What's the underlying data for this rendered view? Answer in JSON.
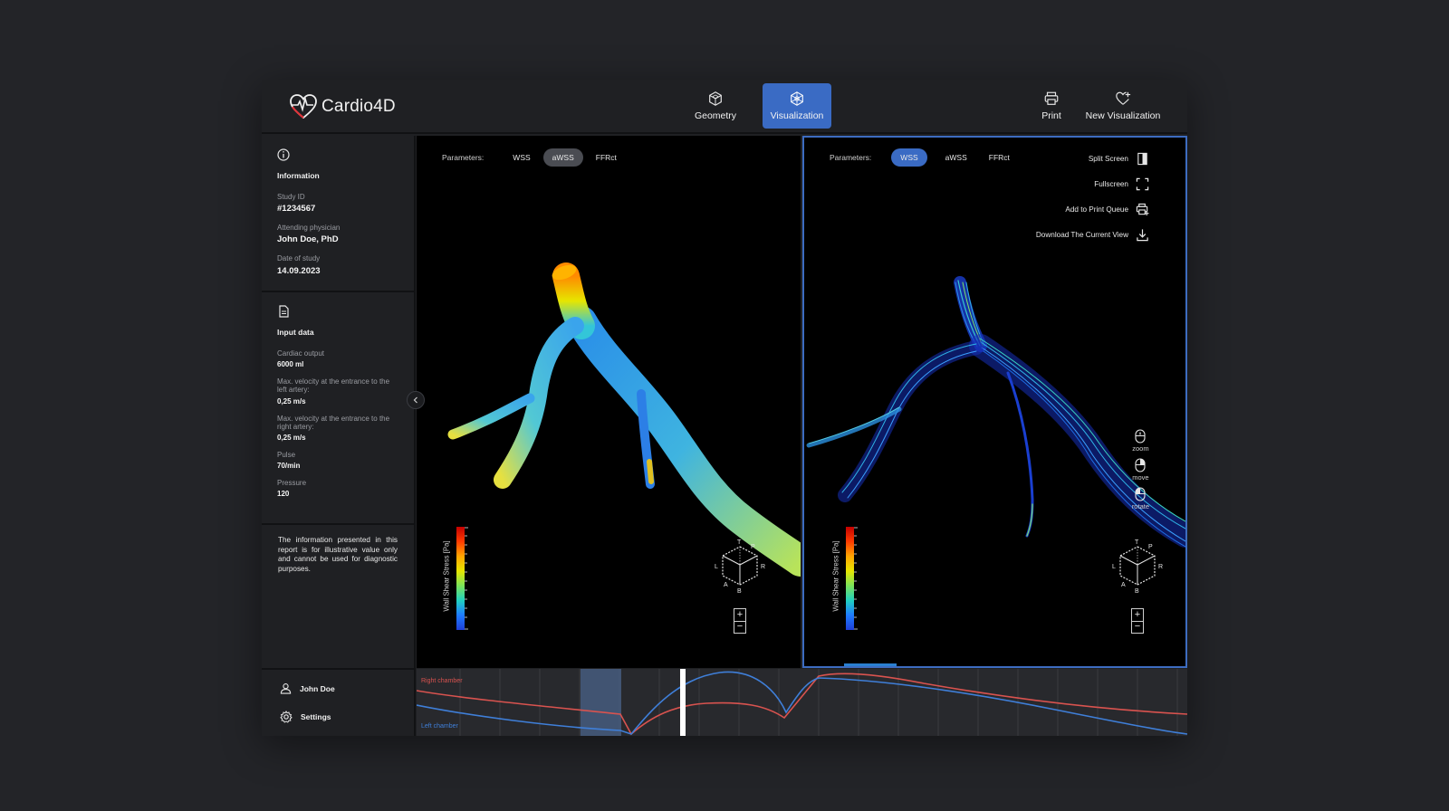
{
  "header": {
    "brand": "Cardio4D",
    "nav": [
      {
        "label": "Geometry",
        "icon": "cube-icon",
        "active": false
      },
      {
        "label": "Visualization",
        "icon": "network-icon",
        "active": true
      }
    ],
    "actions": [
      {
        "label": "Print",
        "icon": "printer-icon"
      },
      {
        "label": "New Visualization",
        "icon": "heart-plus-icon"
      }
    ]
  },
  "sidebar": {
    "information": {
      "title": "Information",
      "study_id_label": "Study ID",
      "study_id": "#1234567",
      "physician_label": "Attending physician",
      "physician": "John Doe, PhD",
      "date_label": "Date of study",
      "date": "14.09.2023"
    },
    "input_data": {
      "title": "Input data",
      "cardiac_output_label": "Cardiac output",
      "cardiac_output": "6000 ml",
      "vel_left_label": "Max. velocity at the entrance to the left artery:",
      "vel_left": "0,25 m/s",
      "vel_right_label": "Max. velocity at the entrance to the right artery:",
      "vel_right": "0,25 m/s",
      "pulse_label": "Pulse",
      "pulse": "70/min",
      "pressure_label": "Pressure",
      "pressure": "120"
    },
    "disclaimer": "The information presented in this report is for illustrative value only and cannot be used for diagnostic purposes.",
    "user": "John Doe",
    "settings": "Settings"
  },
  "left_view": {
    "params_label": "Parameters:",
    "params": [
      "WSS",
      "aWSS",
      "FFRct"
    ],
    "selected": "aWSS",
    "legend_title": "Wall Shear Stress [Pa]"
  },
  "right_view": {
    "params_label": "Parameters:",
    "params": [
      "WSS",
      "aWSS",
      "FFRct"
    ],
    "selected": "WSS",
    "legend_title": "Wall Shear Stress [Pa]",
    "tools": [
      {
        "label": "Split Screen",
        "icon": "split-screen-icon"
      },
      {
        "label": "Fullscreen",
        "icon": "fullscreen-icon"
      },
      {
        "label": "Add to Print Queue",
        "icon": "print-queue-icon"
      },
      {
        "label": "Download The Current View",
        "icon": "download-icon"
      }
    ],
    "mouse_hints": [
      "zoom",
      "move",
      "rotate"
    ]
  },
  "cube_labels": {
    "top": "T",
    "back": "P",
    "left": "L",
    "right": "R",
    "front": "A",
    "bottom": "B"
  },
  "zoom": {
    "plus": "+",
    "minus": "−"
  },
  "timeline": {
    "right_label": "Right chamber",
    "left_label": "Left chamber",
    "right_color": "#d9534f",
    "left_color": "#3f7fd9"
  },
  "colors": {
    "accent": "#3a6bc4",
    "background": "#1f2023"
  }
}
